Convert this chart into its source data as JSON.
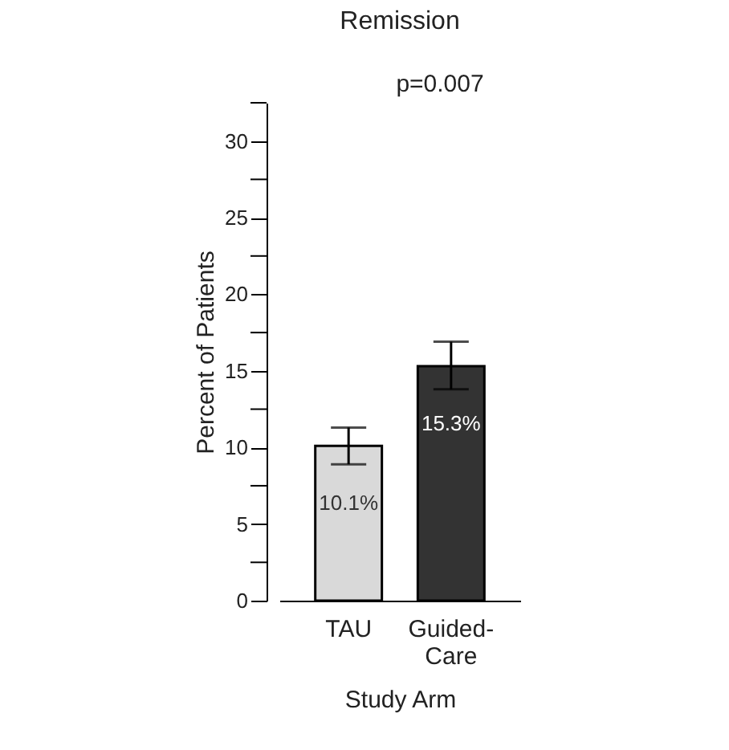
{
  "chart_data": {
    "type": "bar",
    "title": "Remission",
    "xlabel": "Study Arm",
    "ylabel": "Percent of Patients",
    "categories": [
      "TAU",
      "Guided-Care"
    ],
    "values": [
      10.1,
      15.3
    ],
    "colors": [
      "#d9d9d9",
      "#333333"
    ],
    "errors": [
      [
        8.9,
        11.3
      ],
      [
        13.8,
        16.9
      ]
    ],
    "value_labels": [
      "10.1%",
      "15.3%"
    ],
    "annotations": [
      "p=0.007"
    ],
    "ylim": [
      0,
      32.5
    ],
    "yticks": [
      0,
      {
        "value": 2.5,
        "label": null
      },
      5,
      {
        "value": 7.5,
        "label": null
      },
      10,
      {
        "value": 12.5,
        "label": null
      },
      15,
      {
        "value": 17.5,
        "label": null
      },
      20,
      {
        "value": 22.5,
        "label": null
      },
      25,
      {
        "value": 27.5,
        "label": null
      },
      30,
      {
        "value": 32.5,
        "label": null
      }
    ],
    "grid": false
  }
}
